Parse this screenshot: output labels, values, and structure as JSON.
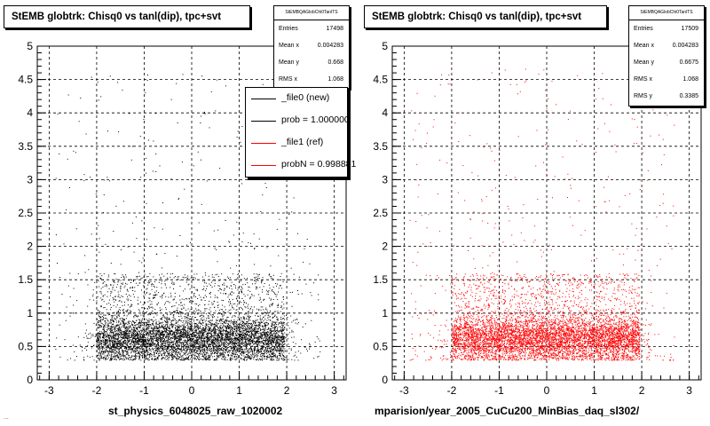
{
  "chart_data": [
    {
      "type": "scatter",
      "title": "StEMB globtrk: Chisq0 vs tanl(dip), tpc+svt",
      "xlabel": "st_physics_6048025_raw_1020002",
      "xlim": [
        -3.25,
        3.25
      ],
      "ylim": [
        0,
        5
      ],
      "x_ticks": [
        "-3",
        "-2",
        "-1",
        "0",
        "1",
        "2",
        "3"
      ],
      "y_ticks": [
        "0",
        "0.5",
        "1",
        "1.5",
        "2",
        "2.5",
        "3",
        "3.5",
        "4",
        "4.5",
        "5"
      ],
      "grid": true,
      "marker_color": "#000000",
      "stats": {
        "header": "StEMBQAGlobChi0TanlTS",
        "rows": [
          {
            "label": "Entries",
            "value": "17498"
          },
          {
            "label": "Mean x",
            "value": "0.004283"
          },
          {
            "label": "Mean y",
            "value": "0.668"
          },
          {
            "label": "RMS x",
            "value": "1.068"
          }
        ]
      },
      "legend": {
        "placement": "top-right",
        "entries": [
          {
            "label": "_file0 (new)",
            "color": "#000000"
          },
          {
            "label": "prob = 1.000000",
            "color": "#000000"
          },
          {
            "label": "_file1 (ref)",
            "color": "#ff0000"
          },
          {
            "label": "probN = 0.998881",
            "color": "#ff0000"
          }
        ]
      },
      "distribution": {
        "core_x": [
          -2.0,
          1.95
        ],
        "core_y": [
          0.3,
          1.0
        ],
        "dense_y_center": 0.62
      }
    },
    {
      "type": "scatter",
      "title": "StEMB globtrk: Chisq0 vs tanl(dip), tpc+svt",
      "xlabel": "mparision/year_2005_CuCu200_MinBias_daq_sl302/",
      "xlim": [
        -3.25,
        3.25
      ],
      "ylim": [
        0,
        5
      ],
      "x_ticks": [
        "-3",
        "-2",
        "-1",
        "0",
        "1",
        "2",
        "3"
      ],
      "y_ticks": [
        "0",
        "0.5",
        "1",
        "1.5",
        "2",
        "2.5",
        "3",
        "3.5",
        "4",
        "4.5",
        "5"
      ],
      "grid": true,
      "marker_color": "#ff0000",
      "stats": {
        "header": "StEMBQAGlobChi0TanlTS",
        "rows": [
          {
            "label": "Entries",
            "value": "17509"
          },
          {
            "label": "Mean x",
            "value": "0.004283"
          },
          {
            "label": "Mean y",
            "value": "0.6675"
          },
          {
            "label": "RMS x",
            "value": "1.068"
          },
          {
            "label": "RMS y",
            "value": "0.3385"
          }
        ]
      },
      "distribution": {
        "core_x": [
          -2.0,
          1.95
        ],
        "core_y": [
          0.3,
          1.0
        ],
        "dense_y_center": 0.62
      }
    }
  ],
  "footer_text": "..."
}
